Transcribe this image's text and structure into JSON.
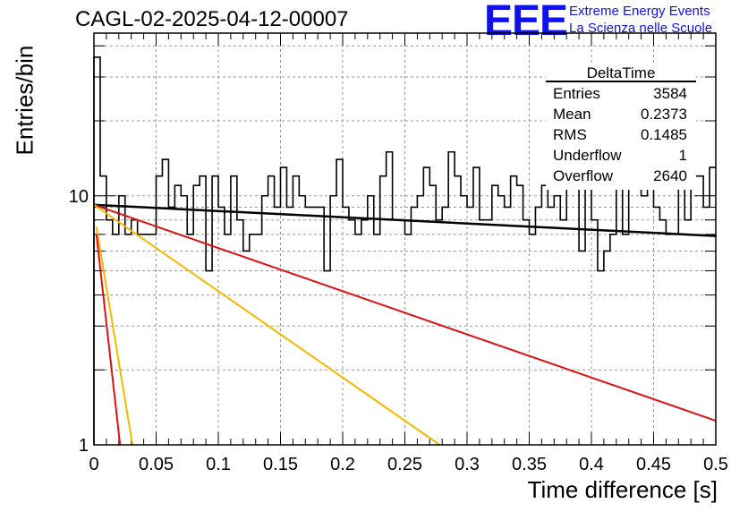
{
  "header": {
    "title": "CAGL-02-2025-04-12-00007",
    "logo": "EEE",
    "logo_line1": "Extreme Energy Events",
    "logo_line2": "La Scienza nelle Scuole"
  },
  "stats": {
    "name": "DeltaTime",
    "rows": [
      {
        "label": "Entries",
        "value": "3584"
      },
      {
        "label": "Mean",
        "value": "0.2373"
      },
      {
        "label": "RMS",
        "value": "0.1485"
      },
      {
        "label": "Underflow",
        "value": "1"
      },
      {
        "label": "Overflow",
        "value": "2640"
      }
    ]
  },
  "chart_data": {
    "type": "histogram",
    "xlabel": "Time difference [s]",
    "ylabel": "Entries/bin",
    "xlim": [
      0,
      0.5
    ],
    "ylim": [
      1,
      45
    ],
    "yscale": "log",
    "grid": true,
    "x_ticks": [
      "0",
      "0.05",
      "0.1",
      "0.15",
      "0.2",
      "0.25",
      "0.3",
      "0.35",
      "0.4",
      "0.45",
      "0.5"
    ],
    "y_ticks": [
      "1",
      "10"
    ],
    "bin_width": 0.005,
    "counts": [
      36,
      12,
      8,
      7,
      10,
      7,
      8,
      7,
      7,
      7,
      12,
      14,
      9,
      11,
      10,
      7,
      11,
      12,
      5,
      12,
      9,
      7,
      12,
      8,
      6,
      7,
      7,
      10,
      12,
      9,
      13,
      9,
      12,
      10,
      9,
      9,
      9,
      5,
      10,
      14,
      9,
      8,
      7,
      8,
      10,
      7,
      12,
      15,
      8,
      8,
      7,
      9,
      10,
      13,
      11,
      8,
      9,
      15,
      12,
      10,
      9,
      13,
      8,
      8,
      11,
      10,
      9,
      12,
      11,
      8,
      7,
      9,
      11,
      9,
      10,
      8,
      11,
      11,
      6,
      13,
      8,
      5,
      6,
      7,
      15,
      7,
      11,
      12,
      10,
      12,
      9,
      8,
      7,
      7,
      14,
      8,
      12,
      12,
      9,
      13
    ],
    "series": [
      {
        "name": "",
        "color": "#000000",
        "points": [
          [
            0,
            9.2
          ],
          [
            0.5,
            6.9
          ]
        ]
      },
      {
        "name": "",
        "color": "#dd1111",
        "points": [
          [
            0,
            9.2
          ],
          [
            0.5,
            1.25
          ]
        ]
      },
      {
        "name": "",
        "color": "#f5b800",
        "points": [
          [
            0,
            9.2
          ],
          [
            0.278,
            1.0
          ]
        ]
      },
      {
        "name": "",
        "color": "#f5b800",
        "points": [
          [
            0.002,
            7.5
          ],
          [
            0.031,
            1.0
          ]
        ]
      },
      {
        "name": "",
        "color": "#dd1111",
        "points": [
          [
            0.002,
            7.0
          ],
          [
            0.021,
            1.0
          ]
        ]
      }
    ]
  }
}
